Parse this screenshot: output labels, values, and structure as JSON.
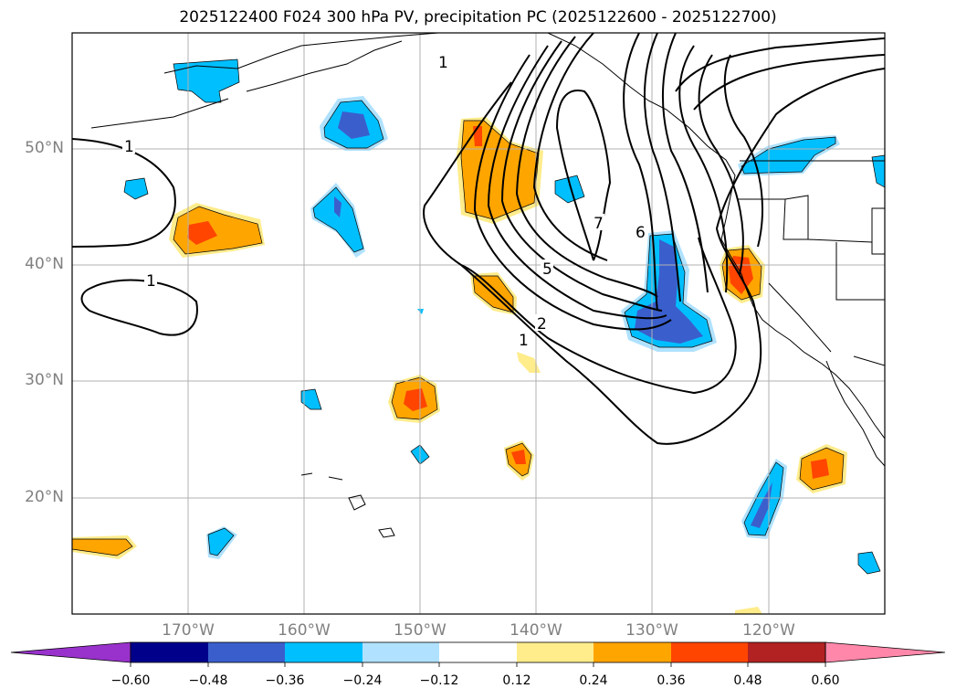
{
  "title": "2025122400 F024 300 hPa PV, precipitation PC (2025122600 - 2025122700)",
  "lat_labels": [
    "50°N",
    "40°N",
    "30°N",
    "20°N"
  ],
  "lon_labels": [
    "170°W",
    "160°W",
    "150°W",
    "140°W",
    "130°W",
    "120°W"
  ],
  "contour_labels": [
    "1",
    "1",
    "1",
    "1",
    "2",
    "5",
    "6",
    "7"
  ],
  "colorbar": {
    "ticks": [
      "−0.60",
      "−0.48",
      "−0.36",
      "−0.24",
      "−0.12",
      "0.12",
      "0.24",
      "0.36",
      "0.48",
      "0.60"
    ],
    "colors": [
      "#9932cc",
      "#00008b",
      "#3a5fcd",
      "#00bfff",
      "#b0e2ff",
      "#ffffff",
      "#ffec8b",
      "#ffa500",
      "#ff4500",
      "#b22222",
      "#ff88aa"
    ]
  }
}
